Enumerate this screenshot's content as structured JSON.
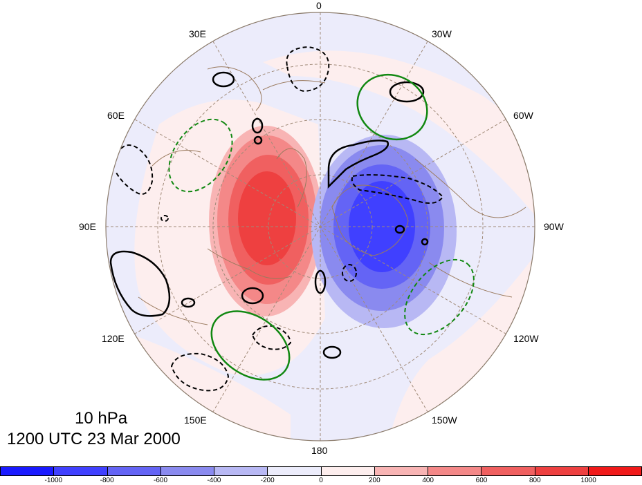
{
  "map": {
    "projection": "north-polar-stereographic",
    "level_label": "10 hPa",
    "time_label": "1200 UTC 23 Mar 2000",
    "longitude_labels": [
      "0",
      "30W",
      "60W",
      "90W",
      "120W",
      "150W",
      "180",
      "150E",
      "120E",
      "90E",
      "60E",
      "30E"
    ]
  },
  "colorbar": {
    "colors": [
      "#1a1aff",
      "#4040ff",
      "#6464f5",
      "#8a8aef",
      "#b8b8f4",
      "#ececfb",
      "#fdeeee",
      "#f8b4b4",
      "#f48888",
      "#f06060",
      "#ee4040",
      "#f01a1a"
    ],
    "tick_labels": [
      "-1000",
      "-800",
      "-600",
      "-400",
      "-200",
      "0",
      "200",
      "400",
      "600",
      "800",
      "1000"
    ]
  }
}
